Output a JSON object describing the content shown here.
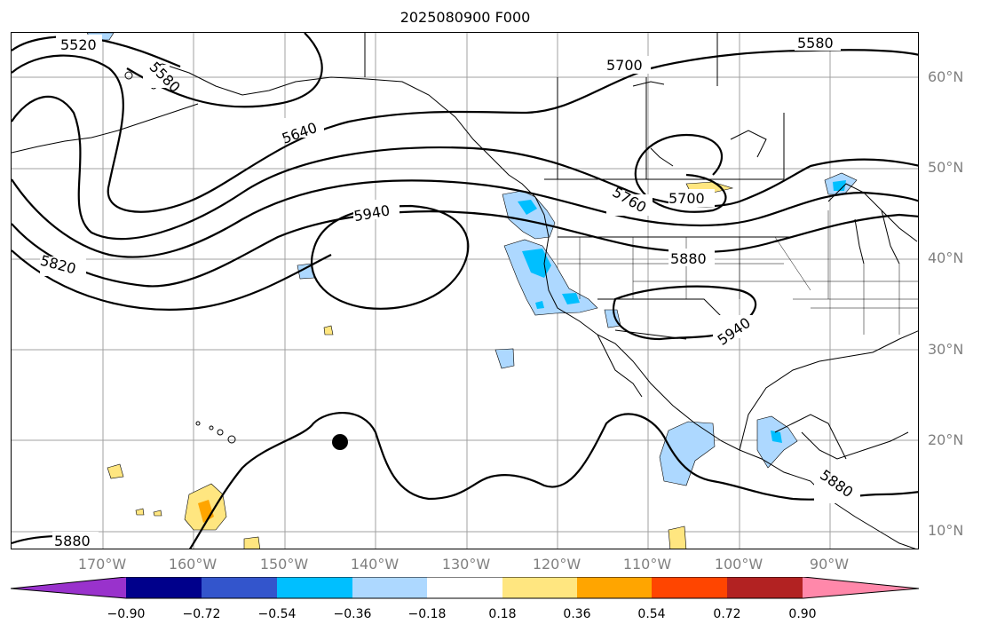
{
  "title": "2025080900 F000",
  "latitude_labels": [
    "60°N",
    "50°N",
    "40°N",
    "30°N",
    "20°N",
    "10°N"
  ],
  "longitude_labels": [
    "170°W",
    "160°W",
    "150°W",
    "140°W",
    "130°W",
    "120°W",
    "110°W",
    "100°W",
    "90°W"
  ],
  "contour_labels": [
    "5520",
    "5580",
    "5580",
    "5640",
    "5700",
    "5700",
    "5760",
    "5820",
    "5880",
    "5880",
    "5880",
    "5940",
    "5940"
  ],
  "colorbar": {
    "ticks": [
      "−0.90",
      "−0.72",
      "−0.54",
      "−0.36",
      "−0.18",
      "0.18",
      "0.36",
      "0.54",
      "0.72",
      "0.90"
    ],
    "colors": [
      "#9932cc",
      "#00008b",
      "#3355cc",
      "#00bfff",
      "#add8ff",
      "#ffffff",
      "#ffe680",
      "#ffa500",
      "#ff4500",
      "#b22222",
      "#ff88aa"
    ]
  },
  "marker": "black-dot"
}
